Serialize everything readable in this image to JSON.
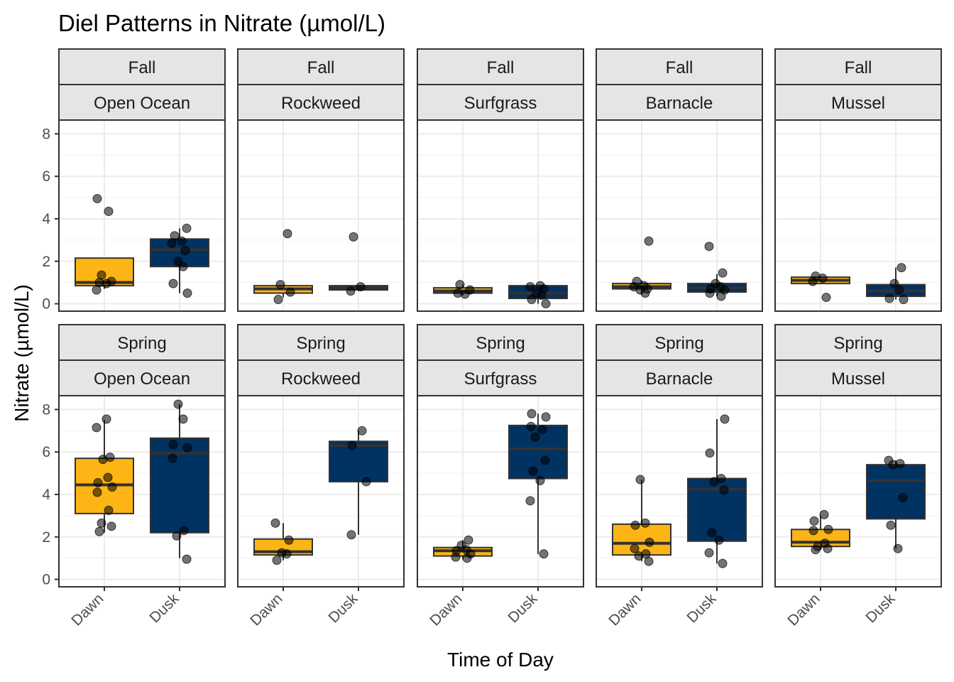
{
  "chart_data": {
    "type": "boxplot",
    "title": "Diel Patterns in Nitrate (µmol/L)",
    "xlabel": "Time of Day",
    "ylabel": "Nitrate (µmol/L)",
    "ylim": [
      -0.35,
      8.65
    ],
    "yticks": [
      0,
      2,
      4,
      6,
      8
    ],
    "categories": [
      "Dawn",
      "Dusk"
    ],
    "colors": {
      "Dawn": "#FDB515",
      "Dusk": "#003262"
    },
    "facet_rows": [
      "Fall",
      "Spring"
    ],
    "facet_cols": [
      "Open Ocean",
      "Rockweed",
      "Surfgrass",
      "Barnacle",
      "Mussel"
    ],
    "panels": [
      {
        "season": "Fall",
        "habitat": "Open Ocean",
        "boxes": [
          {
            "category": "Dawn",
            "q1": 0.85,
            "median": 1.0,
            "q3": 2.15,
            "whisker_low": 0.7,
            "whisker_high": 2.15,
            "points": [
              4.95,
              4.35,
              1.35,
              1.05,
              1.0,
              0.95,
              0.65
            ]
          },
          {
            "category": "Dusk",
            "q1": 1.75,
            "median": 2.55,
            "q3": 3.05,
            "whisker_low": 0.5,
            "whisker_high": 3.55,
            "points": [
              3.55,
              3.2,
              2.95,
              2.85,
              2.5,
              2.0,
              1.75,
              0.95,
              0.5
            ]
          }
        ]
      },
      {
        "season": "Fall",
        "habitat": "Rockweed",
        "boxes": [
          {
            "category": "Dawn",
            "q1": 0.5,
            "median": 0.7,
            "q3": 0.85,
            "whisker_low": 0.3,
            "whisker_high": 0.9,
            "points": [
              3.3,
              0.9,
              0.55,
              0.2
            ]
          },
          {
            "category": "Dusk",
            "q1": 0.65,
            "median": 0.75,
            "q3": 0.85,
            "whisker_low": 0.6,
            "whisker_high": 0.85,
            "points": [
              3.15,
              0.8,
              0.6
            ]
          }
        ]
      },
      {
        "season": "Fall",
        "habitat": "Surfgrass",
        "boxes": [
          {
            "category": "Dawn",
            "q1": 0.5,
            "median": 0.6,
            "q3": 0.75,
            "whisker_low": 0.4,
            "whisker_high": 0.9,
            "points": [
              0.9,
              0.65,
              0.5,
              0.45
            ]
          },
          {
            "category": "Dusk",
            "q1": 0.25,
            "median": 0.5,
            "q3": 0.85,
            "whisker_low": 0.0,
            "whisker_high": 0.9,
            "points": [
              0.85,
              0.8,
              0.7,
              0.5,
              0.4,
              0.2,
              0.0
            ]
          }
        ]
      },
      {
        "season": "Fall",
        "habitat": "Barnacle",
        "boxes": [
          {
            "category": "Dawn",
            "q1": 0.7,
            "median": 0.8,
            "q3": 0.95,
            "whisker_low": 0.5,
            "whisker_high": 1.1,
            "points": [
              2.95,
              1.05,
              0.85,
              0.8,
              0.7,
              0.65,
              0.5
            ]
          },
          {
            "category": "Dusk",
            "q1": 0.55,
            "median": 0.75,
            "q3": 0.95,
            "whisker_low": 0.35,
            "whisker_high": 1.4,
            "points": [
              2.7,
              1.45,
              0.95,
              0.8,
              0.7,
              0.65,
              0.5,
              0.35
            ]
          }
        ]
      },
      {
        "season": "Fall",
        "habitat": "Mussel",
        "boxes": [
          {
            "category": "Dawn",
            "q1": 0.95,
            "median": 1.1,
            "q3": 1.25,
            "whisker_low": 0.95,
            "whisker_high": 1.3,
            "points": [
              1.3,
              1.2,
              1.05,
              0.3
            ]
          },
          {
            "category": "Dusk",
            "q1": 0.35,
            "median": 0.6,
            "q3": 0.9,
            "whisker_low": 0.2,
            "whisker_high": 1.7,
            "points": [
              1.7,
              0.95,
              0.65,
              0.25,
              0.2
            ]
          }
        ]
      },
      {
        "season": "Spring",
        "habitat": "Open Ocean",
        "boxes": [
          {
            "category": "Dawn",
            "q1": 3.1,
            "median": 4.45,
            "q3": 5.7,
            "whisker_low": 2.2,
            "whisker_high": 7.5,
            "points": [
              7.55,
              7.15,
              5.75,
              5.65,
              4.8,
              4.55,
              4.35,
              4.1,
              3.25,
              2.65,
              2.5,
              2.25
            ]
          },
          {
            "category": "Dusk",
            "q1": 2.2,
            "median": 5.95,
            "q3": 6.65,
            "whisker_low": 1.0,
            "whisker_high": 8.25,
            "points": [
              8.25,
              7.55,
              6.35,
              6.2,
              5.7,
              2.3,
              2.05,
              0.95
            ]
          }
        ]
      },
      {
        "season": "Spring",
        "habitat": "Rockweed",
        "boxes": [
          {
            "category": "Dawn",
            "q1": 1.15,
            "median": 1.3,
            "q3": 1.9,
            "whisker_low": 0.9,
            "whisker_high": 2.65,
            "points": [
              2.65,
              1.85,
              1.25,
              1.2,
              0.9
            ]
          },
          {
            "category": "Dusk",
            "q1": 4.6,
            "median": 6.3,
            "q3": 6.5,
            "whisker_low": 2.1,
            "whisker_high": 7.0,
            "points": [
              7.0,
              6.3,
              4.6,
              2.1
            ]
          }
        ]
      },
      {
        "season": "Spring",
        "habitat": "Surfgrass",
        "boxes": [
          {
            "category": "Dawn",
            "q1": 1.1,
            "median": 1.35,
            "q3": 1.5,
            "whisker_low": 0.95,
            "whisker_high": 1.85,
            "points": [
              1.85,
              1.6,
              1.4,
              1.35,
              1.2,
              1.05,
              1.0
            ]
          },
          {
            "category": "Dusk",
            "q1": 4.75,
            "median": 6.15,
            "q3": 7.25,
            "whisker_low": 1.2,
            "whisker_high": 7.8,
            "points": [
              7.8,
              7.65,
              7.2,
              7.05,
              6.7,
              5.6,
              5.1,
              4.65,
              3.7,
              1.2
            ]
          }
        ]
      },
      {
        "season": "Spring",
        "habitat": "Barnacle",
        "boxes": [
          {
            "category": "Dawn",
            "q1": 1.15,
            "median": 1.7,
            "q3": 2.6,
            "whisker_low": 0.85,
            "whisker_high": 4.7,
            "points": [
              4.7,
              2.65,
              2.55,
              1.75,
              1.45,
              1.2,
              1.1,
              0.85
            ]
          },
          {
            "category": "Dusk",
            "q1": 1.8,
            "median": 4.25,
            "q3": 4.75,
            "whisker_low": 0.75,
            "whisker_high": 7.55,
            "points": [
              7.55,
              5.95,
              4.75,
              4.6,
              4.2,
              2.2,
              1.85,
              1.25,
              0.75
            ]
          }
        ]
      },
      {
        "season": "Spring",
        "habitat": "Mussel",
        "boxes": [
          {
            "category": "Dawn",
            "q1": 1.55,
            "median": 1.75,
            "q3": 2.35,
            "whisker_low": 1.4,
            "whisker_high": 3.0,
            "points": [
              3.05,
              2.75,
              2.35,
              2.3,
              1.7,
              1.55,
              1.45,
              1.4
            ]
          },
          {
            "category": "Dusk",
            "q1": 2.85,
            "median": 4.65,
            "q3": 5.4,
            "whisker_low": 1.45,
            "whisker_high": 5.6,
            "points": [
              5.6,
              5.45,
              5.4,
              3.85,
              2.55,
              1.45
            ]
          }
        ]
      }
    ]
  }
}
